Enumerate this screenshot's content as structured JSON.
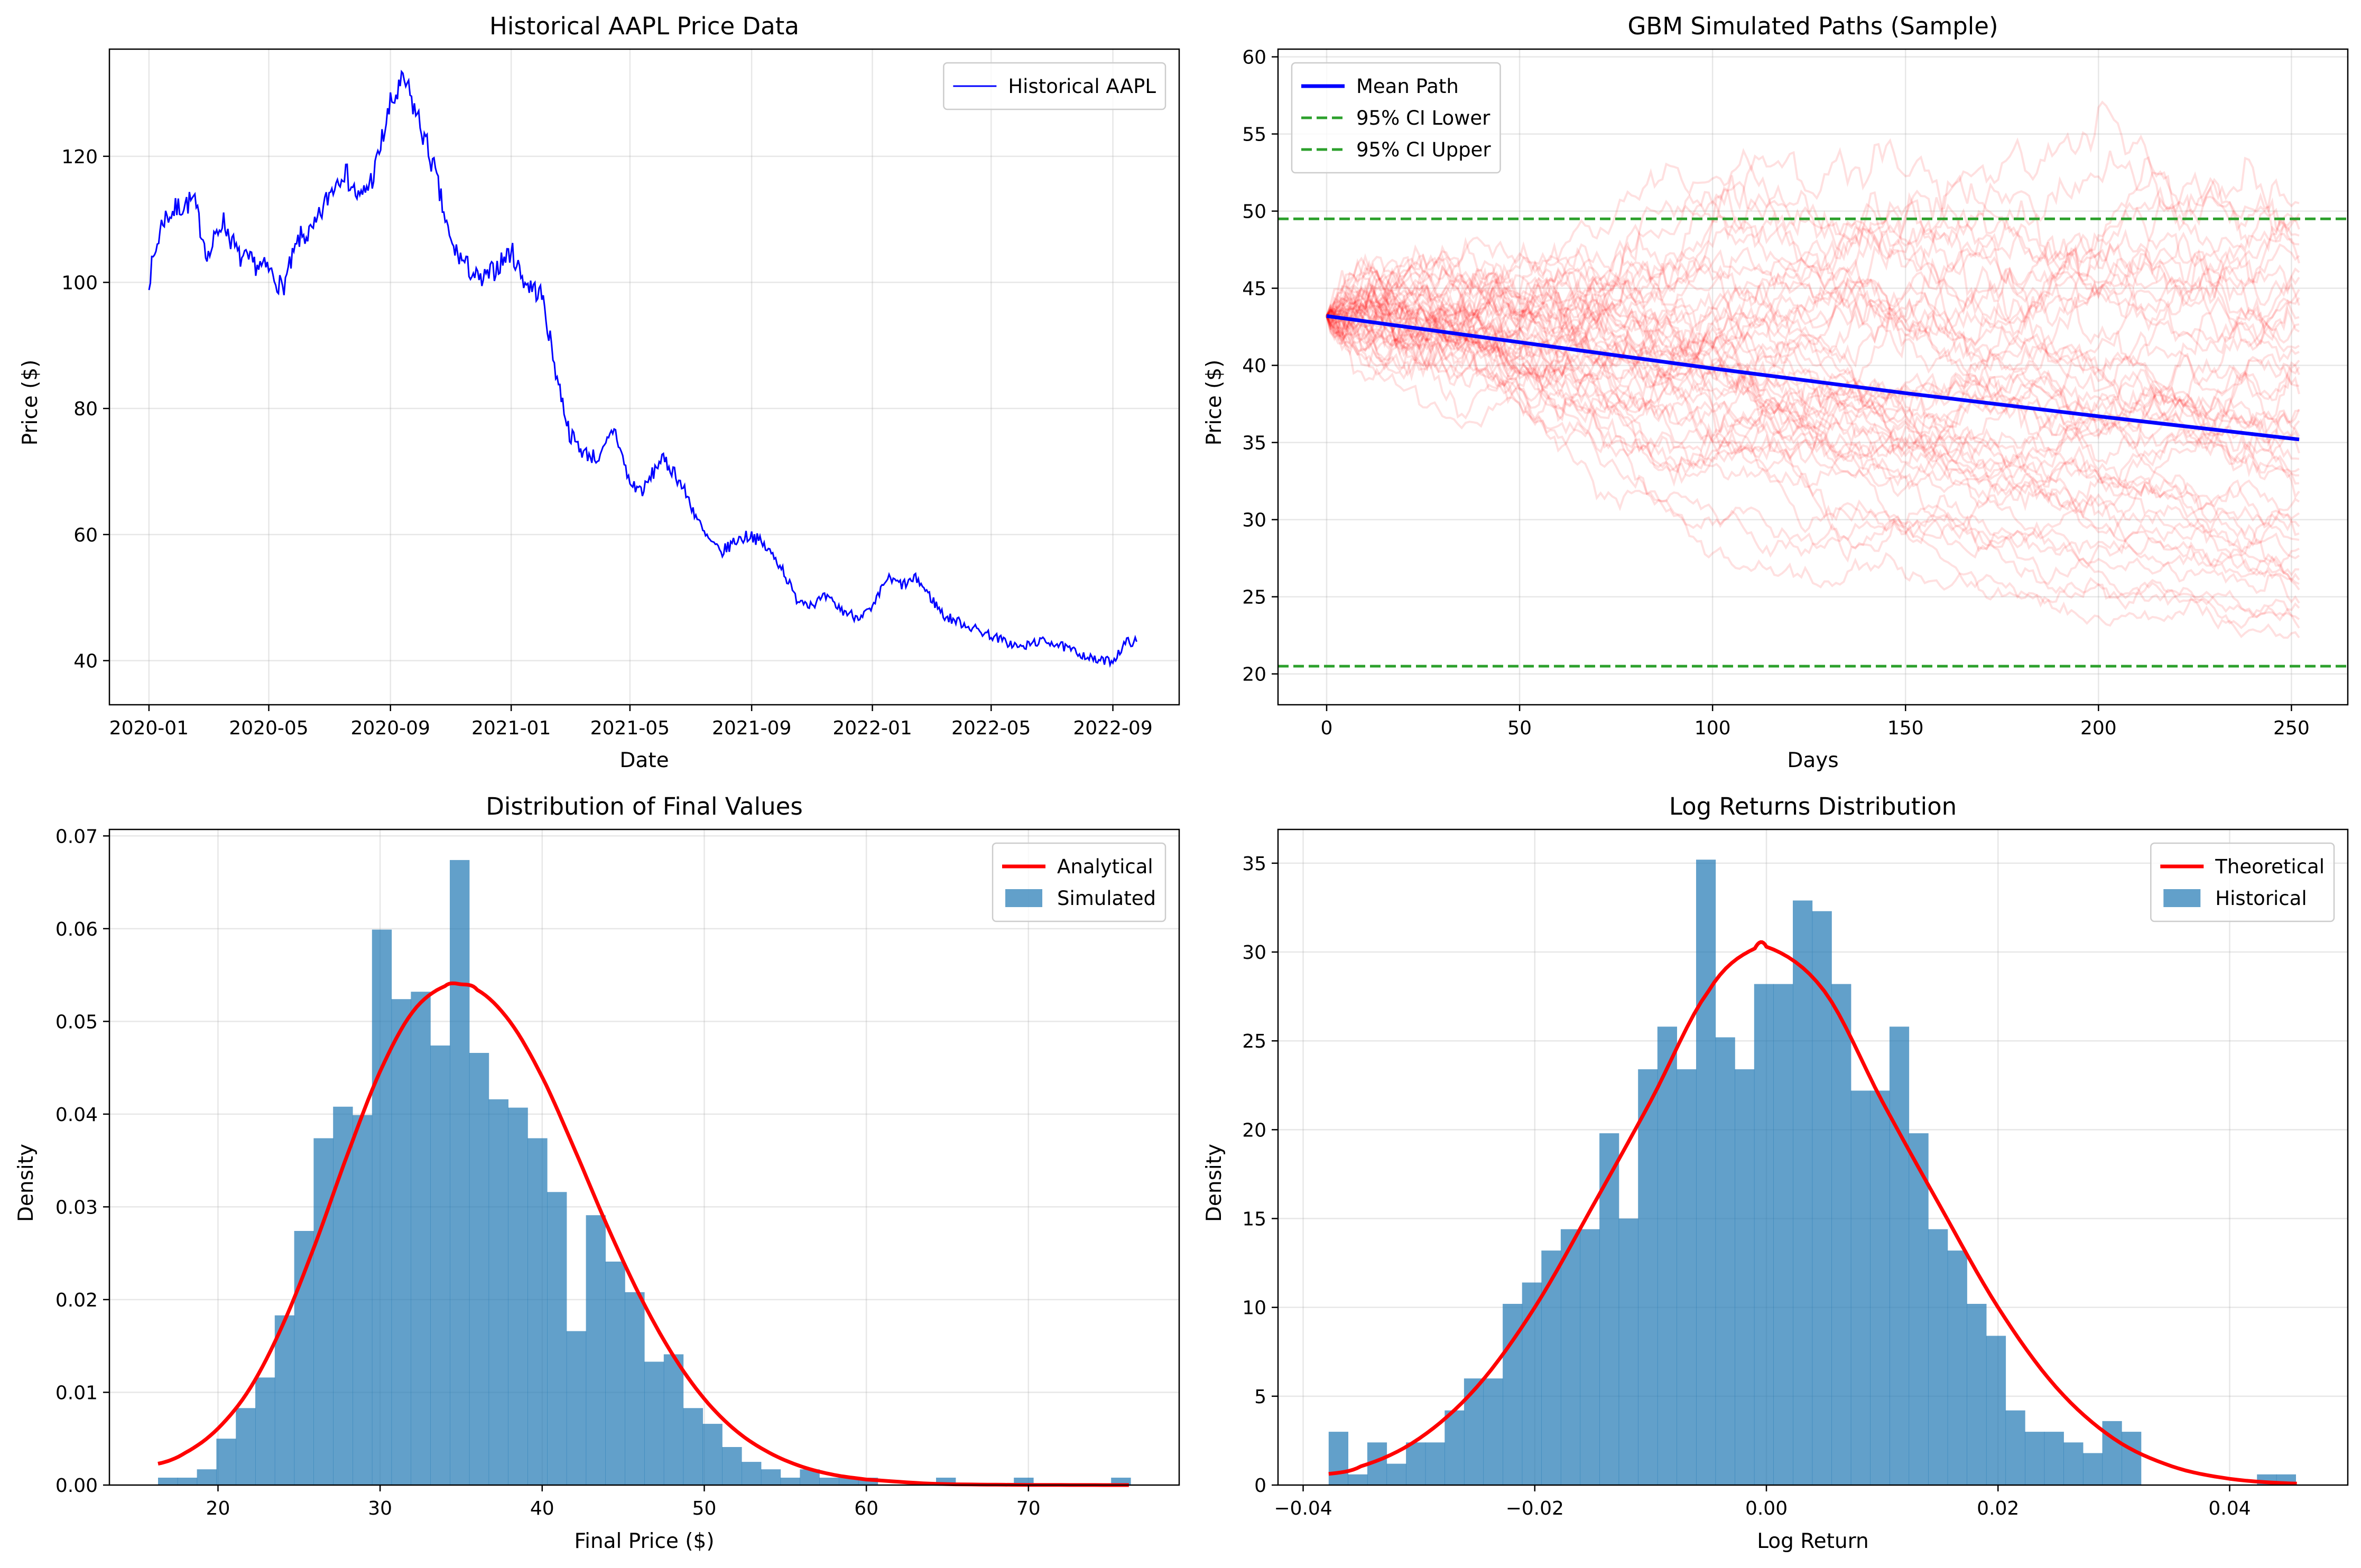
{
  "colors": {
    "historical_line": "#0000ff",
    "mean_path": "#0000ff",
    "ci_lines": "#2ca02c",
    "sim_paths": "#ff0000",
    "hist_bars": "#1f77b4",
    "fit_curve": "#ff0000",
    "grid": "#b0b0b0"
  },
  "chart_data": [
    {
      "type": "line",
      "title": "Historical AAPL Price Data",
      "xlabel": "Date",
      "ylabel": "Price ($)",
      "x_ticks": [
        "2020-01",
        "2020-05",
        "2020-09",
        "2021-01",
        "2021-05",
        "2021-09",
        "2022-01",
        "2022-05",
        "2022-09"
      ],
      "y_ticks": [
        "40",
        "60",
        "80",
        "100",
        "120"
      ],
      "xlim": [
        "2019-11-22",
        "2022-11-07"
      ],
      "ylim": [
        33,
        137
      ],
      "grid": true,
      "legend_position": "top-right",
      "series": [
        {
          "name": "Historical AAPL",
          "color": "#0000ff",
          "x": [
            "2020-01-01",
            "2020-01-15",
            "2020-02-01",
            "2020-02-15",
            "2020-03-01",
            "2020-03-15",
            "2020-04-01",
            "2020-04-15",
            "2020-05-01",
            "2020-05-15",
            "2020-06-01",
            "2020-06-15",
            "2020-07-01",
            "2020-07-15",
            "2020-08-01",
            "2020-08-15",
            "2020-09-01",
            "2020-09-15",
            "2020-10-01",
            "2020-10-15",
            "2020-11-01",
            "2020-11-15",
            "2020-12-01",
            "2020-12-15",
            "2021-01-01",
            "2021-01-15",
            "2021-02-01",
            "2021-02-15",
            "2021-03-01",
            "2021-03-15",
            "2021-04-01",
            "2021-04-15",
            "2021-05-01",
            "2021-05-15",
            "2021-06-01",
            "2021-06-15",
            "2021-07-01",
            "2021-07-15",
            "2021-08-01",
            "2021-08-15",
            "2021-09-01",
            "2021-09-15",
            "2021-10-01",
            "2021-10-15",
            "2021-11-01",
            "2021-11-15",
            "2021-12-01",
            "2021-12-15",
            "2022-01-01",
            "2022-01-15",
            "2022-02-01",
            "2022-02-15",
            "2022-03-01",
            "2022-03-15",
            "2022-04-01",
            "2022-04-15",
            "2022-05-01",
            "2022-05-15",
            "2022-06-01",
            "2022-06-15",
            "2022-07-01",
            "2022-07-15",
            "2022-08-01",
            "2022-08-15",
            "2022-09-01",
            "2022-09-15",
            "2022-09-25"
          ],
          "y": [
            100.5,
            110,
            112,
            113,
            104,
            110,
            104,
            103,
            102,
            99,
            107,
            108,
            114,
            118,
            113,
            117,
            128,
            132,
            125,
            118,
            106,
            103,
            100,
            102,
            105,
            100,
            98,
            86,
            76,
            73,
            72,
            77,
            68,
            67,
            72,
            70,
            65,
            60,
            57,
            59,
            60,
            58,
            55,
            50,
            49,
            50,
            48,
            47,
            48,
            53,
            52,
            53,
            50,
            47,
            46,
            45,
            44,
            43,
            42,
            43,
            43,
            42,
            41,
            40,
            40,
            43,
            43
          ]
        }
      ]
    },
    {
      "type": "line",
      "title": "GBM Simulated Paths (Sample)",
      "xlabel": "Days",
      "ylabel": "Price ($)",
      "x_ticks": [
        "0",
        "50",
        "100",
        "150",
        "200",
        "250"
      ],
      "y_ticks": [
        "20",
        "25",
        "30",
        "35",
        "40",
        "45",
        "50",
        "55",
        "60"
      ],
      "xlim": [
        -12.6,
        264.6
      ],
      "ylim": [
        18,
        60.5
      ],
      "grid": true,
      "legend_position": "top-left",
      "series": [
        {
          "name": "Mean Path",
          "color": "#0000ff",
          "x": [
            0,
            50,
            100,
            150,
            200,
            252
          ],
          "y": [
            43.2,
            41.5,
            39.8,
            38.2,
            36.7,
            35.2
          ]
        },
        {
          "name": "95% CI Lower",
          "color": "#2ca02c",
          "style": "dashed",
          "y": 20.5
        },
        {
          "name": "95% CI Upper",
          "color": "#2ca02c",
          "style": "dashed",
          "y": 49.5
        }
      ],
      "simulated_paths": {
        "count": 50,
        "days": 252,
        "start": 43.2,
        "final_min": 22,
        "final_max": 51,
        "peak": 58.5,
        "trough": 20,
        "color": "#ff0000",
        "opacity": 0.12
      }
    },
    {
      "type": "bar",
      "title": "Distribution of Final Values",
      "xlabel": "Final Price ($)",
      "ylabel": "Density",
      "x_ticks": [
        "20",
        "30",
        "40",
        "50",
        "60",
        "70"
      ],
      "y_ticks": [
        "0.00",
        "0.01",
        "0.02",
        "0.03",
        "0.04",
        "0.05",
        "0.06",
        "0.07"
      ],
      "xlim": [
        13.3,
        79.3
      ],
      "ylim": [
        0,
        0.0707
      ],
      "grid": true,
      "legend_position": "top-right",
      "series": [
        {
          "name": "Analytical",
          "type": "line",
          "color": "#ff0000",
          "x": [
            16.3,
            18,
            20,
            22,
            24,
            26,
            28,
            30,
            32,
            34,
            35,
            36,
            38,
            40,
            42,
            44,
            46,
            48,
            50,
            52,
            54,
            56,
            58,
            60,
            64,
            68,
            72,
            76.2
          ],
          "y": [
            0.0023,
            0.0035,
            0.0061,
            0.0105,
            0.0173,
            0.026,
            0.0357,
            0.0446,
            0.051,
            0.0538,
            0.054,
            0.0534,
            0.05,
            0.044,
            0.0362,
            0.028,
            0.0205,
            0.0142,
            0.0093,
            0.0058,
            0.0035,
            0.002,
            0.0011,
            0.0006,
            0.00015,
            4e-05,
            1e-05,
            0.0
          ]
        },
        {
          "name": "Simulated",
          "type": "histogram",
          "color": "#1f77b4",
          "bin_start": 16.3,
          "bin_width": 1.2,
          "values": [
            0.0008,
            0.0008,
            0.0017,
            0.005,
            0.0083,
            0.0116,
            0.0183,
            0.0274,
            0.0374,
            0.0408,
            0.0399,
            0.0599,
            0.0524,
            0.0532,
            0.0474,
            0.0674,
            0.0466,
            0.0416,
            0.0407,
            0.0374,
            0.0316,
            0.0166,
            0.0291,
            0.0241,
            0.0208,
            0.0133,
            0.0141,
            0.0083,
            0.0066,
            0.0041,
            0.0025,
            0.0017,
            0.0008,
            0.0017,
            0.0008,
            0.0008,
            0.0008,
            0.0,
            0.0,
            0.0,
            0.0008,
            0.0,
            0.0,
            0.0,
            0.0008,
            0.0,
            0.0,
            0.0,
            0.0,
            0.0008
          ]
        }
      ]
    },
    {
      "type": "bar",
      "title": "Log Returns Distribution",
      "xlabel": "Log Return",
      "ylabel": "Density",
      "x_ticks": [
        "−0.04",
        "−0.02",
        "0.00",
        "0.02",
        "0.04"
      ],
      "y_ticks": [
        "0",
        "5",
        "10",
        "15",
        "20",
        "25",
        "30",
        "35"
      ],
      "xlim": [
        -0.04217,
        0.0502
      ],
      "ylim": [
        0,
        36.9
      ],
      "grid": true,
      "legend_position": "top-right",
      "series": [
        {
          "name": "Theoretical",
          "type": "line",
          "color": "#ff0000",
          "x": [
            -0.0378,
            -0.035,
            -0.03,
            -0.025,
            -0.02,
            -0.015,
            -0.01,
            -0.005,
            -0.001,
            0.0,
            0.005,
            0.01,
            0.015,
            0.02,
            0.025,
            0.03,
            0.035,
            0.04,
            0.0458
          ],
          "y": [
            0.63,
            1.06,
            2.61,
            5.52,
            10.0,
            15.7,
            21.6,
            27.8,
            30.2,
            30.3,
            27.8,
            21.6,
            15.7,
            10.0,
            5.52,
            2.61,
            1.06,
            0.35,
            0.08
          ]
        },
        {
          "name": "Historical",
          "type": "histogram",
          "color": "#1f77b4",
          "bin_start": -0.0378,
          "bin_width": 0.00167,
          "values": [
            3.0,
            0.6,
            2.4,
            1.2,
            2.4,
            2.4,
            4.2,
            6.0,
            6.0,
            10.2,
            11.4,
            13.2,
            14.4,
            14.4,
            19.8,
            15.0,
            23.4,
            25.8,
            23.4,
            35.2,
            25.2,
            23.4,
            28.2,
            28.2,
            32.9,
            32.3,
            28.2,
            22.2,
            22.2,
            25.8,
            19.8,
            14.4,
            13.2,
            10.2,
            8.4,
            4.2,
            3.0,
            3.0,
            2.4,
            1.8,
            3.6,
            3.0,
            0.0,
            0.0,
            0.0,
            0.0,
            0.0,
            0.0,
            0.6,
            0.6
          ]
        }
      ]
    }
  ]
}
